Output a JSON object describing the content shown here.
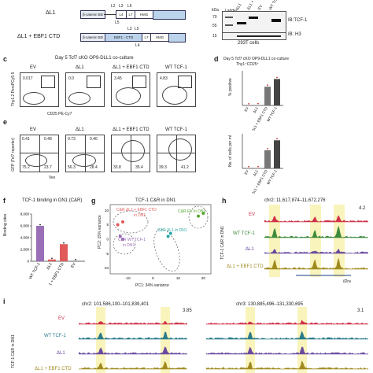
{
  "panel_a": {
    "construct1": "ΔL1",
    "construct2": "ΔL1 + EBF1 CTD",
    "bcat": "β-catenin BD",
    "ebf": "EBF1 - CTD",
    "hmg": "HMG",
    "l2": "L2",
    "l3": "L3",
    "l4": "L4",
    "l5": "L5",
    "l6": "L6",
    "l7": "L7"
  },
  "panel_b": {
    "lanes": [
      "Ladder",
      "ΔL1",
      "ΔL1 + EBF1 CTD",
      "EV",
      "WT TCF-1"
    ],
    "kda_label": "kDa",
    "mw": [
      "70",
      "55",
      "15"
    ],
    "blot1": "IB:TCF-1",
    "blot2": "IB: H3",
    "cells": "293T cells"
  },
  "panel_c": {
    "letter": "c",
    "title": "Day 5 Tcf7 cKO OP9-DLL1 co-culture",
    "ylabel": "Thy1.2 PercPCy5.5",
    "xlabel": "CD25 PE-Cy7",
    "plots": [
      {
        "label": "EV",
        "value": "0.017"
      },
      {
        "label": "ΔL1",
        "value": "0.0"
      },
      {
        "label": "ΔL1 + EBF1 CTD",
        "value": "3.45"
      },
      {
        "label": "WT TCF-1",
        "value": "4.83"
      }
    ]
  },
  "panel_d": {
    "letter": "d",
    "title": "Day 5 Tcf7 cKO OP9-DLL1 co-culture",
    "subtitle": "Thy1⁺CD25⁺",
    "ylabel1": "% positive",
    "ylabel2": "No. of cells per ml",
    "groups": [
      "EV",
      "ΔL1",
      "ΔL1 + EBF1 CTD",
      "WT TCF-1"
    ],
    "values_pct": [
      0.02,
      0.05,
      3.4,
      4.8
    ],
    "values_count": [
      0.05,
      0.08,
      5.5,
      8.5
    ],
    "ymax": 6,
    "ymax2": 10
  },
  "panel_e": {
    "letter": "e",
    "ylabel": "GFP (Tcf7 reporter)",
    "xlabel": "Vex",
    "plots": [
      {
        "label": "EV",
        "q": [
          "0.41",
          "0.48",
          "75.2",
          "23.7"
        ]
      },
      {
        "label": "ΔL1",
        "q": [
          "0.73",
          "0.46",
          "56.3",
          "28.4"
        ]
      },
      {
        "label": "ΔL1 + EBF1 CTD",
        "q": [
          "",
          "",
          "33.8",
          "35.4"
        ]
      },
      {
        "label": "WT TCF-1",
        "q": [
          "",
          "",
          "39.3",
          "41.2"
        ]
      }
    ]
  },
  "panel_f": {
    "letter": "f",
    "title": "TCF-1 binding in DN1 (C&R)",
    "ylabel": "Binding sites",
    "groups": [
      "WT TCF-1",
      "ΔL1",
      "ΔL1 + EBF1 CTD",
      "EV"
    ],
    "values": [
      6000,
      300,
      2900,
      100
    ],
    "ylim": [
      0,
      8000
    ],
    "ticks": [
      "0",
      "2,000",
      "4,000",
      "6,000",
      "8,000"
    ],
    "colors": [
      "#9a6fb8",
      "#e05a5a",
      "#e05a5a",
      "#8a8a8a"
    ]
  },
  "panel_g": {
    "letter": "g",
    "title": "TCF-1 C&R in DN1",
    "xlabel": "PC1: 34% variance",
    "ylabel": "PC2: 15% variance",
    "xticks": [
      "-10",
      "0",
      "10",
      "20"
    ],
    "yticks": [
      "10",
      "5",
      "0",
      "-5",
      "-10"
    ],
    "labels": {
      "l1": "C&R ΔL1 + EBF1 CTD",
      "l1b": "in DN1",
      "l2": "C&R EV in DN1",
      "l3": "C&R ΔL1 in DN1",
      "l4": "C&R WT TCF-1",
      "l4b": "in DN1"
    },
    "points": [
      {
        "x": -12,
        "y": 6,
        "c": "#e05a5a"
      },
      {
        "x": -14,
        "y": 5,
        "c": "#e05a5a"
      },
      {
        "x": -13,
        "y": 1,
        "c": "#9a6fb8"
      },
      {
        "x": -12,
        "y": 0,
        "c": "#9a6fb8"
      },
      {
        "x": 18,
        "y": 8,
        "c": "#5aa832"
      },
      {
        "x": 20,
        "y": 9,
        "c": "#5aa832"
      },
      {
        "x": 6,
        "y": 1,
        "c": "#2aa9a6"
      },
      {
        "x": 7,
        "y": 2,
        "c": "#2aa9a6"
      }
    ]
  },
  "panel_h": {
    "letter": "h",
    "coords": "chr2: 11,617,874–11,672,276",
    "scale": "4.2",
    "ylabel": "TCF-1 C&R in DN1",
    "tracks": [
      {
        "label": "EV",
        "color": "#d0324a"
      },
      {
        "label": "WT TCF-1",
        "color": "#3c8a3c"
      },
      {
        "label": "ΔL1",
        "color": "#6a4aa0"
      },
      {
        "label": "ΔL1 + EBF1 CTD",
        "color": "#a08a20"
      }
    ],
    "gene": "Il2ra"
  },
  "panel_i": {
    "letter": "i",
    "coords1": "chr2: 101,586,100–101,839,401",
    "scale1": "3.85",
    "coords2": "chr3: 130,885,496–131,330,695",
    "scale2": "3.1",
    "ylabel": "TCF-1 C&R in DN1",
    "tracks": [
      {
        "label": "EV",
        "color": "#d0324a"
      },
      {
        "label": "WT TCF-1",
        "color": "#2a7a8a"
      },
      {
        "label": "ΔL1",
        "color": "#6a4aa0"
      },
      {
        "label": "ΔL1 + EBF1 CTD",
        "color": "#a08a20"
      }
    ]
  }
}
